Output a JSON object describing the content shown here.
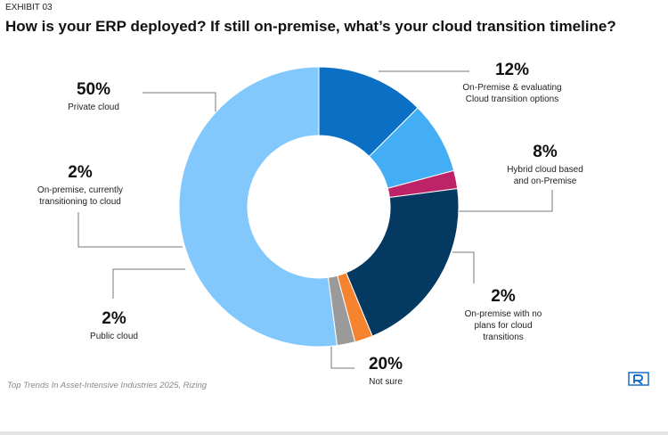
{
  "chart_data": {
    "type": "pie",
    "exhibit": "EXHIBIT 03",
    "title": "How is your ERP deployed? If still on-premise, what’s your cloud transition timeline?",
    "source": "Top Trends In Asset-Intensive Industries 2025, Rizing",
    "categories": [
      "On-Premise & evaluating Cloud transition options",
      "Hybrid cloud based and on-Premise",
      "On-premise with no plans for cloud transitions",
      "Not sure",
      "Public cloud",
      "On-premise, currently transitioning to cloud",
      "Private cloud"
    ],
    "values": [
      12,
      8,
      2,
      20,
      2,
      2,
      50
    ],
    "value_labels": [
      "12%",
      "8%",
      "2%",
      "20%",
      "2%",
      "2%",
      "50%"
    ],
    "colors": [
      "#0b70c4",
      "#44aef5",
      "#be2367",
      "#043a62",
      "#f5832f",
      "#9a9a9a",
      "#82c8fd"
    ]
  }
}
